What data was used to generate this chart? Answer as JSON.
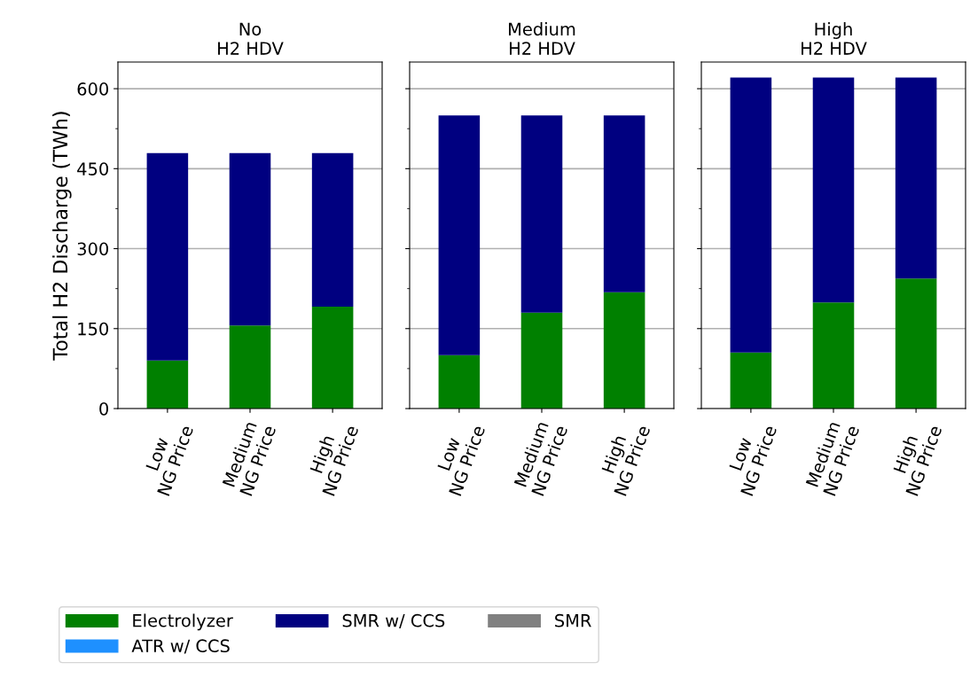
{
  "chart_data": [
    {
      "type": "bar",
      "stacked": true,
      "title": "No\nH2 HDV",
      "ylabel": "Total H2 Discharge (TWh)",
      "categories": [
        "Low\nNG Price",
        "Medium\nNG Price",
        "High\nNG Price"
      ],
      "ylim": [
        0,
        650
      ],
      "yticks": [
        0,
        {
          "value": 75,
          "label": null
        },
        150,
        {
          "value": 225,
          "label": null
        },
        300,
        {
          "value": 375,
          "label": null
        },
        450,
        {
          "value": 525,
          "label": null
        },
        600
      ],
      "grid": "y",
      "legend": "bottom",
      "series": [
        {
          "name": "Electrolyzer",
          "color": "#008000",
          "values": [
            90,
            156,
            191
          ]
        },
        {
          "name": "ATR w/ CCS",
          "color": "#1e90ff",
          "values": [
            0,
            0,
            0
          ]
        },
        {
          "name": "SMR w/ CCS",
          "color": "#000080",
          "values": [
            389,
            323,
            288
          ]
        },
        {
          "name": "SMR",
          "color": "#808080",
          "values": [
            0,
            0,
            0
          ]
        }
      ]
    },
    {
      "type": "bar",
      "stacked": true,
      "title": "Medium\nH2 HDV",
      "categories": [
        "Low\nNG Price",
        "Medium\nNG Price",
        "High\nNG Price"
      ],
      "ylim": [
        0,
        650
      ],
      "yticks": [
        0,
        {
          "value": 75,
          "label": null
        },
        150,
        {
          "value": 225,
          "label": null
        },
        300,
        {
          "value": 375,
          "label": null
        },
        450,
        {
          "value": 525,
          "label": null
        },
        600
      ],
      "grid": "y",
      "tick_labels": "x",
      "series": [
        {
          "color": "#008000",
          "values": [
            100,
            180,
            218
          ]
        },
        {
          "color": "#1e90ff",
          "values": [
            0,
            0,
            0
          ]
        },
        {
          "color": "#000080",
          "values": [
            450,
            370,
            332
          ]
        },
        {
          "color": "#808080",
          "values": [
            0,
            0,
            0
          ]
        }
      ]
    },
    {
      "type": "bar",
      "stacked": true,
      "title": "High\nH2 HDV",
      "categories": [
        "Low\nNG Price",
        "Medium\nNG Price",
        "High\nNG Price"
      ],
      "ylim": [
        0,
        650
      ],
      "yticks": [
        0,
        {
          "value": 75,
          "label": null
        },
        150,
        {
          "value": 225,
          "label": null
        },
        300,
        {
          "value": 375,
          "label": null
        },
        450,
        {
          "value": 525,
          "label": null
        },
        600
      ],
      "grid": "y",
      "tick_labels": "x",
      "series": [
        {
          "color": "#008000",
          "values": [
            105,
            199,
            244
          ]
        },
        {
          "color": "#1e90ff",
          "values": [
            0,
            0,
            0
          ]
        },
        {
          "color": "#000080",
          "values": [
            516,
            422,
            377
          ]
        },
        {
          "color": "#808080",
          "values": [
            0,
            0,
            0
          ]
        }
      ]
    }
  ]
}
